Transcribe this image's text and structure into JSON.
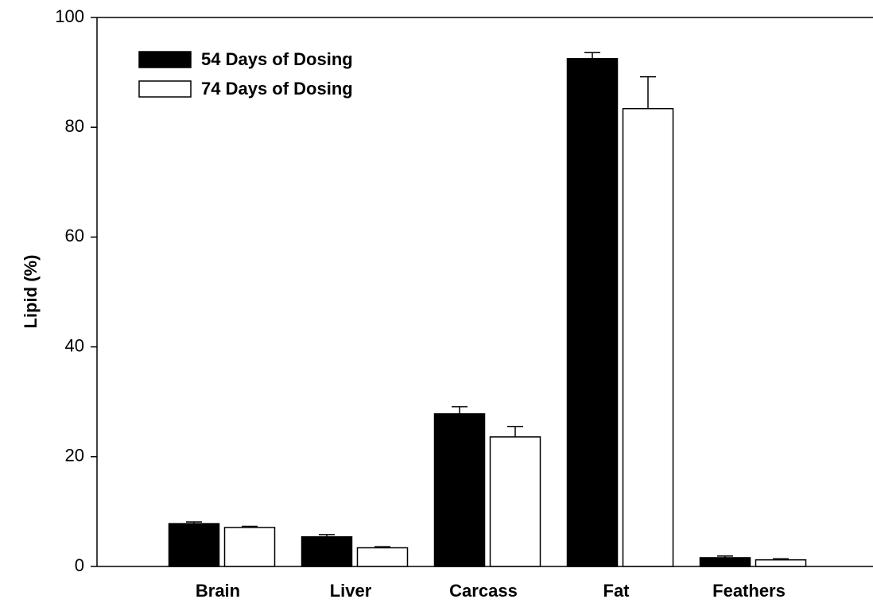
{
  "chart_data": {
    "type": "bar",
    "y_label": "Lipid (%)",
    "categories": [
      "Brain",
      "Liver",
      "Carcass",
      "Fat",
      "Feathers"
    ],
    "series": [
      {
        "name": "54 Days of Dosing",
        "color": "#000000",
        "values": [
          7.8,
          5.4,
          27.8,
          92.5,
          1.6
        ],
        "errors": [
          0.3,
          0.4,
          1.3,
          1.1,
          0.3
        ]
      },
      {
        "name": "74 Days of Dosing",
        "color": "#ffffff",
        "values": [
          7.1,
          3.4,
          23.6,
          83.4,
          1.2
        ],
        "errors": [
          0.2,
          0.2,
          1.9,
          5.8,
          0.2
        ]
      }
    ],
    "ylim": [
      0,
      100
    ],
    "yticks": [
      0,
      20,
      40,
      60,
      80,
      100
    ],
    "legend": "upper left"
  }
}
